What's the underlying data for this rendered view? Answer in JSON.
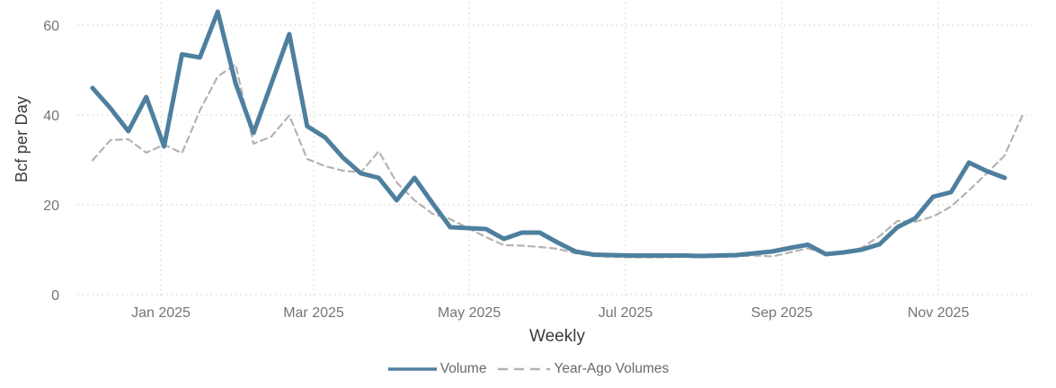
{
  "chart": {
    "y_axis_title": "Bcf per Day",
    "x_axis_title": "Weekly",
    "background_color": "#ffffff",
    "gridline_color": "#d4d4d4",
    "tick_label_color": "#757575",
    "axis_title_color": "#3b3b3b",
    "legend": [
      {
        "label": "Volume",
        "style": "solid",
        "color": "#4e7f9f"
      },
      {
        "label": "Year-Ago Volumes",
        "style": "dashed",
        "color": "#b5b3b1"
      }
    ]
  },
  "chart_data": {
    "type": "line",
    "title": "",
    "xlabel": "Weekly",
    "ylabel": "Bcf per Day",
    "ylim": [
      0,
      65
    ],
    "grid": true,
    "legend_position": "bottom",
    "y_ticks": [
      0,
      20,
      40,
      60
    ],
    "x_ticks": [
      {
        "label": "Jan 2025",
        "week_pos": 3.82
      },
      {
        "label": "Mar 2025",
        "week_pos": 12.36
      },
      {
        "label": "May 2025",
        "week_pos": 21.06
      },
      {
        "label": "Jul 2025",
        "week_pos": 29.8
      },
      {
        "label": "Sep 2025",
        "week_pos": 38.54
      },
      {
        "label": "Nov 2025",
        "week_pos": 47.29
      }
    ],
    "x": [
      "2024-12-06",
      "2024-12-13",
      "2024-12-20",
      "2024-12-27",
      "2025-01-03",
      "2025-01-10",
      "2025-01-17",
      "2025-01-24",
      "2025-01-31",
      "2025-02-07",
      "2025-02-14",
      "2025-02-21",
      "2025-02-28",
      "2025-03-07",
      "2025-03-14",
      "2025-03-21",
      "2025-03-28",
      "2025-04-04",
      "2025-04-11",
      "2025-04-18",
      "2025-04-25",
      "2025-05-02",
      "2025-05-09",
      "2025-05-16",
      "2025-05-23",
      "2025-05-30",
      "2025-06-06",
      "2025-06-13",
      "2025-06-20",
      "2025-06-27",
      "2025-07-04",
      "2025-07-11",
      "2025-07-18",
      "2025-07-25",
      "2025-08-01",
      "2025-08-08",
      "2025-08-15",
      "2025-08-22",
      "2025-08-29",
      "2025-09-05",
      "2025-09-12",
      "2025-09-19",
      "2025-09-26",
      "2025-10-03",
      "2025-10-10",
      "2025-10-17",
      "2025-10-24",
      "2025-10-31",
      "2025-11-07",
      "2025-11-14",
      "2025-11-21",
      "2025-11-28",
      "2025-12-05"
    ],
    "series": [
      {
        "name": "Volume",
        "style": "solid",
        "color": "#4e7f9f",
        "values": [
          46,
          41.5,
          36.4,
          44,
          33,
          53.5,
          52.8,
          63,
          47,
          36,
          47,
          58,
          37.5,
          35,
          30.5,
          27,
          26,
          21,
          26,
          20.4,
          15,
          14.8,
          14.6,
          12.4,
          13.8,
          13.8,
          11.6,
          9.6,
          8.9,
          8.8,
          8.7,
          8.7,
          8.7,
          8.7,
          8.6,
          8.7,
          8.8,
          9.2,
          9.6,
          10.4,
          11.1,
          9,
          9.4,
          10,
          11.2,
          15,
          17,
          21.8,
          22.8,
          29.4,
          27.5,
          26,
          null
        ]
      },
      {
        "name": "Year-Ago Volumes",
        "style": "dashed",
        "color": "#b5b3b1",
        "values": [
          29.9,
          34.4,
          34.6,
          31.6,
          33.4,
          31.5,
          41,
          48.6,
          51.2,
          33.6,
          35.2,
          39.9,
          30.2,
          28.6,
          27.6,
          27.2,
          31.9,
          25,
          21,
          18,
          16.8,
          14.8,
          12.8,
          11,
          10.9,
          10.6,
          10.2,
          9.2,
          8.6,
          8.4,
          8.3,
          8.3,
          8.3,
          8.4,
          8.3,
          8.4,
          8.5,
          8.7,
          8.5,
          9.4,
          10.3,
          9,
          9.3,
          10.4,
          13,
          16.4,
          16.2,
          17.4,
          19.6,
          23.2,
          27,
          31,
          40
        ]
      }
    ]
  }
}
